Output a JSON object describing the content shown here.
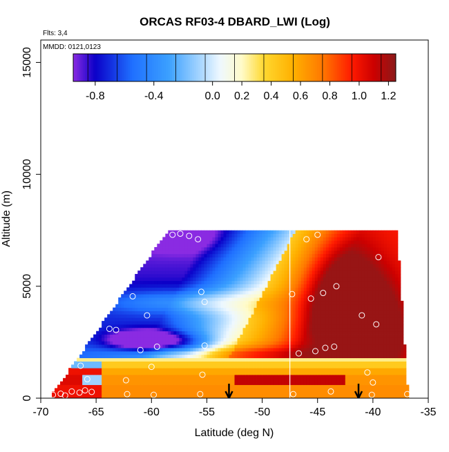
{
  "chart_data": {
    "type": "heatmap",
    "title": "ORCAS RF03-4 DBARD_LWI (Log)",
    "xlabel": "Latitude (deg N)",
    "ylabel": "Altitude (m)",
    "xlim": [
      -70,
      -35
    ],
    "ylim": [
      0,
      16000
    ],
    "xticks": [
      -70,
      -65,
      -60,
      -55,
      -50,
      -45,
      -40,
      -35
    ],
    "yticks": [
      0,
      5000,
      10000,
      15000
    ],
    "annotations": {
      "flights": "Flts: 3,4",
      "dates": "MMDD: 0121,0123"
    },
    "colorbar": {
      "ticks": [
        "-0.8",
        "-0.4",
        "0.0",
        "0.2",
        "0.4",
        "0.6",
        "0.8",
        "1.0",
        "1.2"
      ],
      "tick_values": [
        -0.8,
        -0.4,
        0.0,
        0.2,
        0.4,
        0.6,
        0.8,
        1.0,
        1.2
      ],
      "range": [
        -0.95,
        1.25
      ],
      "stops": [
        {
          "v": -0.95,
          "c": "#8a2be2"
        },
        {
          "v": -0.8,
          "c": "#0b00c8"
        },
        {
          "v": -0.55,
          "c": "#1f6fff"
        },
        {
          "v": -0.3,
          "c": "#3ba0ff"
        },
        {
          "v": -0.1,
          "c": "#9fd2ff"
        },
        {
          "v": 0.05,
          "c": "#eef8ff"
        },
        {
          "v": 0.2,
          "c": "#fffbc8"
        },
        {
          "v": 0.35,
          "c": "#ffd830"
        },
        {
          "v": 0.55,
          "c": "#ffb000"
        },
        {
          "v": 0.75,
          "c": "#ff7800"
        },
        {
          "v": 0.95,
          "c": "#ff1a00"
        },
        {
          "v": 1.1,
          "c": "#cc0000"
        },
        {
          "v": 1.25,
          "c": "#8b1a1a"
        }
      ]
    },
    "domain": {
      "bottom_left": [
        -69.2,
        0
      ],
      "bottom_right": [
        -36.8,
        0
      ],
      "top_left": [
        -58.5,
        7500
      ],
      "top_right": [
        -37.8,
        7500
      ]
    },
    "vertical_line_x": -47.5,
    "arrows_x": [
      -53,
      -41.3
    ],
    "points": [
      [
        -68.9,
        150
      ],
      [
        -68.2,
        200
      ],
      [
        -67.8,
        120
      ],
      [
        -67.2,
        300
      ],
      [
        -66.5,
        250
      ],
      [
        -66.0,
        350
      ],
      [
        -65.4,
        280
      ],
      [
        -62.2,
        180
      ],
      [
        -59.8,
        150
      ],
      [
        -55.6,
        180
      ],
      [
        -47.2,
        180
      ],
      [
        -43.8,
        300
      ],
      [
        -40.1,
        150
      ],
      [
        -36.9,
        180
      ],
      [
        -66.4,
        1450
      ],
      [
        -65.8,
        850
      ],
      [
        -62.3,
        800
      ],
      [
        -60.0,
        1400
      ],
      [
        -55.4,
        1050
      ],
      [
        -63.2,
        3050
      ],
      [
        -61.0,
        2150
      ],
      [
        -59.5,
        2300
      ],
      [
        -55.2,
        2350
      ],
      [
        -60.4,
        3700
      ],
      [
        -61.7,
        4550
      ],
      [
        -55.2,
        4300
      ],
      [
        -55.5,
        4750
      ],
      [
        -58.1,
        7300
      ],
      [
        -57.4,
        7350
      ],
      [
        -56.6,
        7250
      ],
      [
        -55.8,
        7100
      ],
      [
        -47.3,
        4650
      ],
      [
        -45.6,
        4450
      ],
      [
        -44.5,
        4700
      ],
      [
        -43.3,
        5000
      ],
      [
        -41.0,
        3700
      ],
      [
        -39.7,
        3300
      ],
      [
        -46.7,
        2000
      ],
      [
        -45.2,
        2100
      ],
      [
        -44.3,
        2250
      ],
      [
        -43.5,
        2300
      ],
      [
        -40.5,
        1150
      ],
      [
        -40.0,
        700
      ],
      [
        -46.0,
        7100
      ],
      [
        -45.0,
        7300
      ],
      [
        -39.5,
        6300
      ],
      [
        -63.8,
        3100
      ]
    ]
  }
}
